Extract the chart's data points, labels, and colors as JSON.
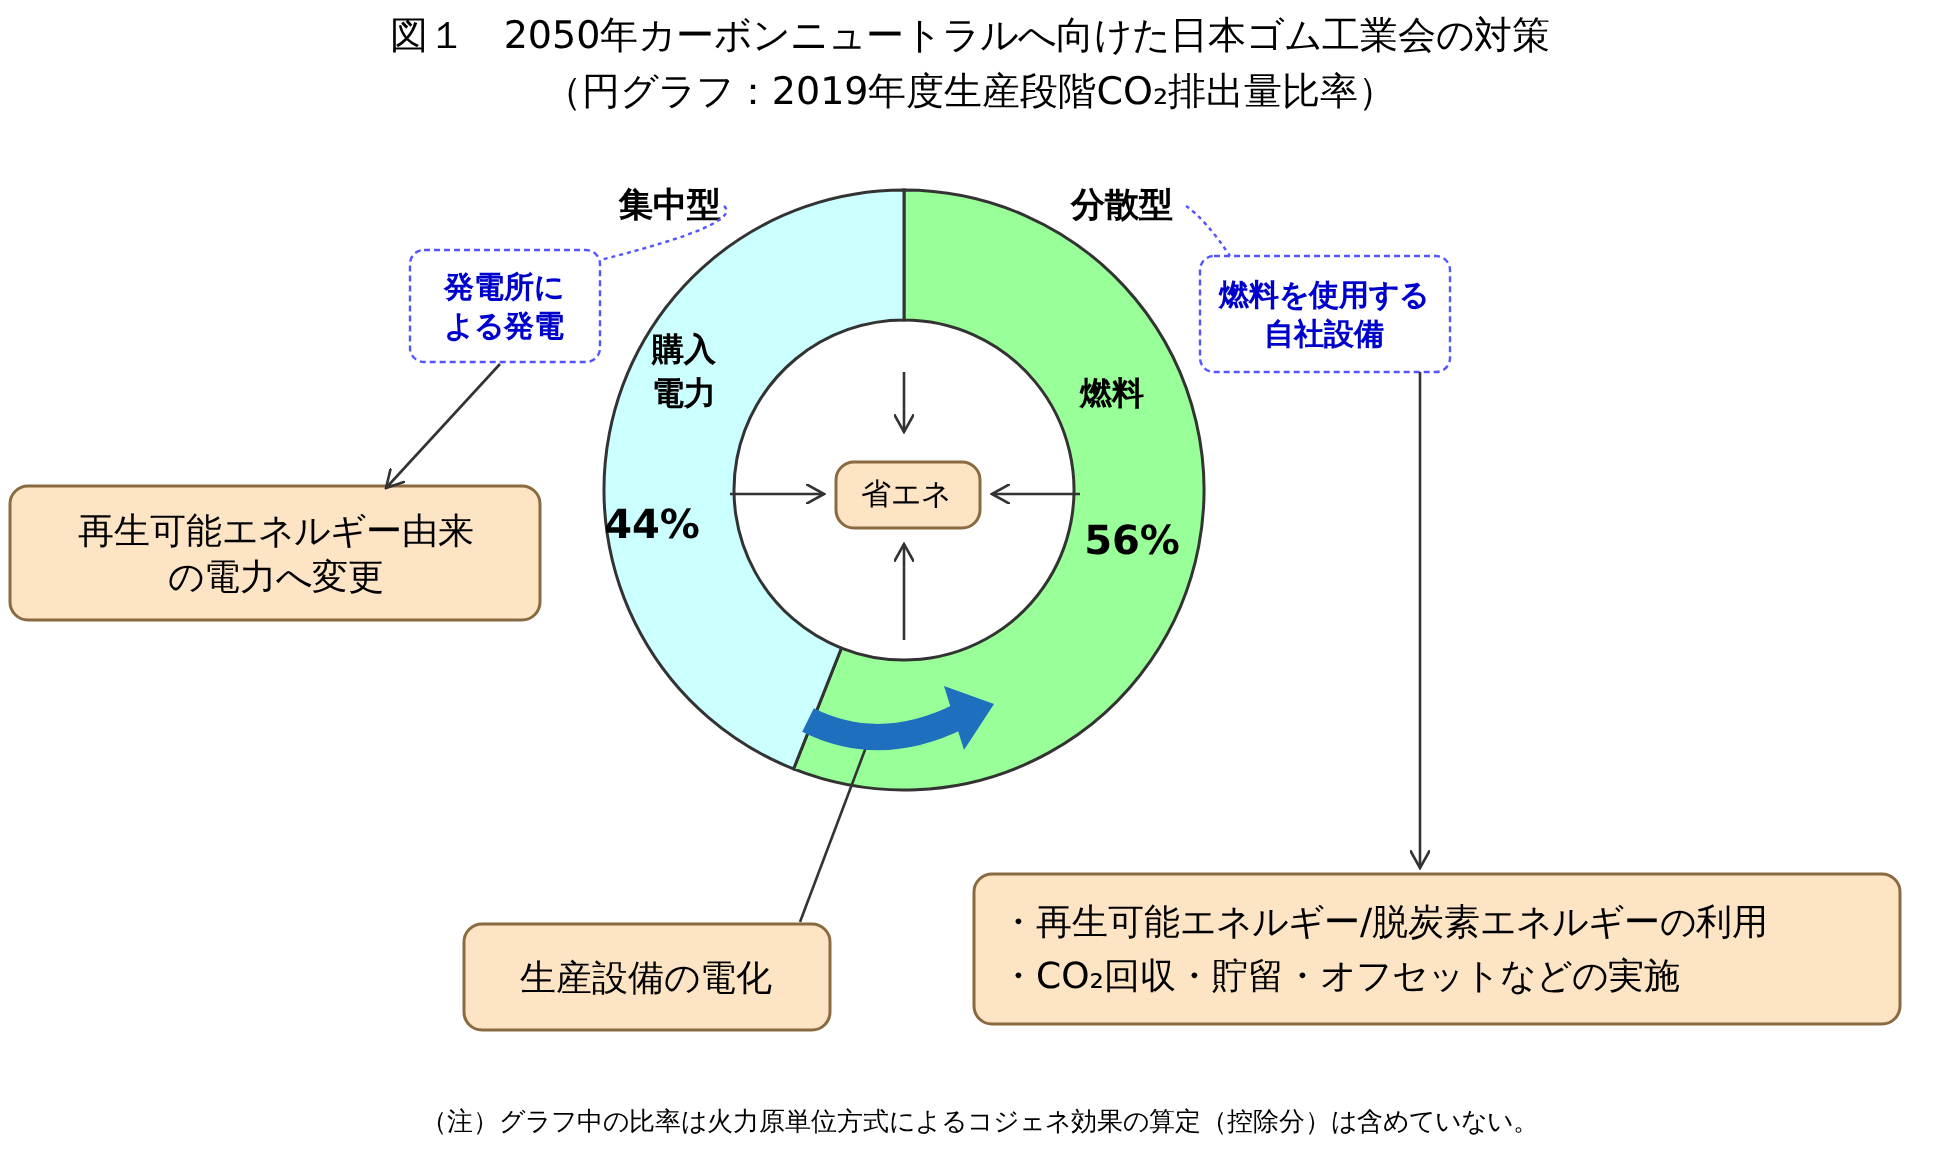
{
  "chart_data": {
    "type": "donut",
    "title": "図１　2050年カーボンニュートラルへ向けた日本ゴム工業会の対策",
    "subtitle": "（円グラフ：2019年度生産段階CO₂排出量比率）",
    "categories": [
      "燃料",
      "購入電力"
    ],
    "values": [
      56,
      44
    ],
    "colors": [
      "#99ff99",
      "#ccffff"
    ],
    "value_labels": [
      "56%",
      "44%"
    ],
    "annotations": [
      "集中型",
      "分散型",
      "発電所による発電",
      "燃料を使用する自社設備",
      "再生可能エネルギー由来の電力へ変更",
      "省エネ",
      "生産設備の電化",
      "・再生可能エネルギー/脱炭素エネルギーの利用",
      "・CO₂回収・貯留・オフセットなどの実施",
      "（注）グラフ中の比率は火力原単位方式によるコジェネ効果の算定（控除分）は含めていない。"
    ]
  }
}
